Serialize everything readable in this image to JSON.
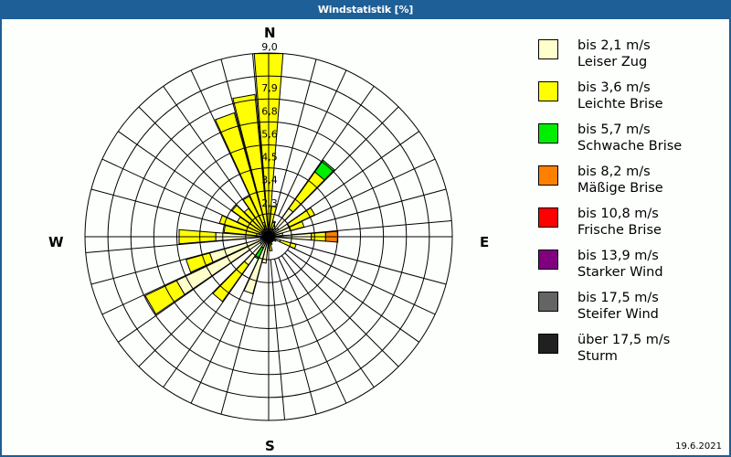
{
  "window": {
    "title": "Windstatistik [%]"
  },
  "compass": {
    "north": "N",
    "east": "E",
    "south": "S",
    "west": "W"
  },
  "footer": {
    "date": "19.6.2021"
  },
  "legend": {
    "items": [
      {
        "speed": "bis 2,1 m/s",
        "name": "Leiser Zug",
        "color": "#ffffcc"
      },
      {
        "speed": "bis 3,6 m/s",
        "name": "Leichte Brise",
        "color": "#ffff00"
      },
      {
        "speed": "bis 5,7 m/s",
        "name": "Schwache Brise",
        "color": "#00ee00"
      },
      {
        "speed": "bis 8,2 m/s",
        "name": "Mäßige Brise",
        "color": "#ff8000"
      },
      {
        "speed": "bis 10,8 m/s",
        "name": "Frische Brise",
        "color": "#ff0000"
      },
      {
        "speed": "bis 13,9 m/s",
        "name": "Starker Wind",
        "color": "#800080"
      },
      {
        "speed": "bis 17,5 m/s",
        "name": "Steifer Wind",
        "color": "#646464"
      },
      {
        "speed": "über 17,5 m/s",
        "name": "Sturm",
        "color": "#202020"
      }
    ]
  },
  "chart_data": {
    "type": "wind-rose",
    "title": "Windstatistik [%]",
    "unit": "%",
    "ring_labels": [
      "1,1",
      "2,3",
      "3,4",
      "4,5",
      "5,6",
      "6,8",
      "7,9",
      "9,0"
    ],
    "rmax": 9.0,
    "sector_width_deg": 10,
    "series_names": [
      "Leiser Zug",
      "Leichte Brise",
      "Schwache Brise",
      "Mäßige Brise",
      "Frische Brise",
      "Starker Wind",
      "Steifer Wind",
      "Sturm"
    ],
    "sectors": [
      {
        "dir": 0,
        "values": [
          0.3,
          8.7,
          0,
          0
        ]
      },
      {
        "dir": 10,
        "values": [
          0.3,
          1.2,
          0,
          0
        ]
      },
      {
        "dir": 20,
        "values": [
          0.4,
          0.4,
          0,
          0
        ]
      },
      {
        "dir": 30,
        "values": [
          0.4,
          0,
          0,
          0
        ]
      },
      {
        "dir": 40,
        "values": [
          1.7,
          2.2,
          0.7,
          0
        ]
      },
      {
        "dir": 50,
        "values": [
          0.6,
          0,
          0,
          0
        ]
      },
      {
        "dir": 60,
        "values": [
          1.1,
          1.4,
          0,
          0
        ]
      },
      {
        "dir": 70,
        "values": [
          1.1,
          0.7,
          0,
          0
        ]
      },
      {
        "dir": 80,
        "values": [
          0.7,
          0,
          0,
          0
        ]
      },
      {
        "dir": 90,
        "values": [
          2.1,
          0.7,
          0,
          0.6
        ]
      },
      {
        "dir": 100,
        "values": [
          0.3,
          0,
          0,
          0
        ]
      },
      {
        "dir": 110,
        "values": [
          0.6,
          0.8,
          0,
          0
        ]
      },
      {
        "dir": 120,
        "values": [
          0.4,
          0,
          0,
          0
        ]
      },
      {
        "dir": 130,
        "values": [
          0.3,
          0,
          0,
          0
        ]
      },
      {
        "dir": 140,
        "values": [
          0.3,
          0,
          0,
          0
        ]
      },
      {
        "dir": 150,
        "values": [
          0.3,
          0,
          0,
          0
        ]
      },
      {
        "dir": 160,
        "values": [
          0.4,
          0,
          0,
          0
        ]
      },
      {
        "dir": 170,
        "values": [
          0.3,
          0.4,
          0,
          0
        ]
      },
      {
        "dir": 180,
        "values": [
          0.3,
          0,
          0,
          0
        ]
      },
      {
        "dir": 190,
        "values": [
          1.3,
          0,
          0,
          0
        ]
      },
      {
        "dir": 200,
        "values": [
          2.9,
          0,
          0,
          0
        ]
      },
      {
        "dir": 210,
        "values": [
          0.6,
          0,
          0.6,
          0
        ]
      },
      {
        "dir": 220,
        "values": [
          1.7,
          2.2,
          0,
          0
        ]
      },
      {
        "dir": 230,
        "values": [
          0.5,
          0,
          0,
          0
        ]
      },
      {
        "dir": 240,
        "values": [
          5.0,
          1.7,
          0,
          0
        ]
      },
      {
        "dir": 250,
        "values": [
          3.0,
          1.2,
          0,
          0
        ]
      },
      {
        "dir": 260,
        "values": [
          0.4,
          0,
          0,
          0
        ]
      },
      {
        "dir": 270,
        "values": [
          2.6,
          1.8,
          0,
          0
        ]
      },
      {
        "dir": 280,
        "values": [
          0.6,
          1.6,
          0,
          0
        ]
      },
      {
        "dir": 290,
        "values": [
          0.5,
          2.0,
          0,
          0
        ]
      },
      {
        "dir": 300,
        "values": [
          0.4,
          1.3,
          0,
          0
        ]
      },
      {
        "dir": 310,
        "values": [
          0.4,
          1.8,
          0,
          0
        ]
      },
      {
        "dir": 320,
        "values": [
          0.4,
          1.3,
          0,
          0
        ]
      },
      {
        "dir": 330,
        "values": [
          0.4,
          1.8,
          0,
          0
        ]
      },
      {
        "dir": 340,
        "values": [
          0.4,
          5.9,
          0,
          0
        ]
      },
      {
        "dir": 350,
        "values": [
          0.4,
          6.6,
          0,
          0
        ]
      }
    ]
  }
}
